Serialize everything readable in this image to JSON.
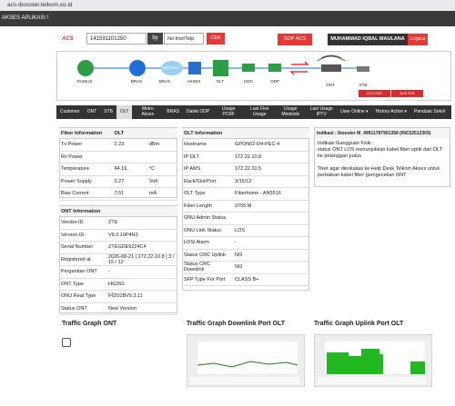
{
  "browser": {
    "url": "acs-ibooster.telkom.co.id"
  },
  "topbar": {
    "title": "AKSES APLIKASI !"
  },
  "search": {
    "logo": "ACS",
    "input": "141591101250",
    "by": "by",
    "select": "No Inet/Telp",
    "button": "CEK"
  },
  "header_buttons": {
    "sop": "SOP ACS",
    "user": "MUHAMMAD IQBAL MAULANA",
    "logout": "Logout"
  },
  "topology": {
    "nodes": [
      "RADIUS",
      "BRAS",
      "BRAS",
      "AKSES",
      "OLT",
      "ODC",
      "ODP",
      "ONT",
      "STB"
    ],
    "cloud": "METRO-E",
    "buttons": [
      "ACS ONT Connectivity",
      "ACS STB Connectivity"
    ]
  },
  "tabs": [
    "Customer",
    "ONT",
    "STB",
    "OLT",
    "Metro Akses",
    "BRAS",
    "Datek ODP",
    "Usage PCRF",
    "Last Five Usage",
    "Usage Minitools",
    "Last Usage IPTV",
    "User Online ▾",
    "History Action ▾",
    "Panduan Sokol"
  ],
  "fiber": {
    "title": "Fiber Information",
    "column": "OLT",
    "rows": [
      [
        "Tx Power",
        "2.23",
        "dBm"
      ],
      [
        "Rx Power"
      ],
      [
        "Temperature",
        "44.16",
        "°C"
      ],
      [
        "Power Supply",
        "3.27",
        "Volt"
      ],
      [
        "Bias Current",
        "7.51",
        "mA"
      ]
    ]
  },
  "ont": {
    "title": "ONT Information",
    "rows": [
      [
        "Vendor ID",
        "ZTE"
      ],
      [
        "Version ID",
        "V9.3.10P4N3"
      ],
      [
        "Serial Number",
        "ZTEGDE9224C4"
      ],
      [
        "Registered at",
        "2026-08-21 | 172.22.10.8 | 3 / 15 / 12"
      ],
      [
        "Pergantian ONT",
        "-"
      ],
      [
        "ONT Type",
        "HG260"
      ],
      [
        "ONU Real Type",
        "F6201BV9.3.11"
      ],
      [
        "Status ONT",
        "New Version"
      ]
    ]
  },
  "olt": {
    "title": "OLT Information",
    "rows": [
      [
        "Hostname",
        "GPON02-D4-PEC-4"
      ],
      [
        "IP OLT",
        "172.22.10.8"
      ],
      [
        "IP AMS",
        "172.22.10.5"
      ],
      [
        "Rack/Slot/Port",
        "3/15/12"
      ],
      [
        "OLT Type",
        "Fiberhome - AN5516"
      ],
      [
        "Fiber Length",
        "3755 M"
      ],
      [
        "ONU Admin Status"
      ],
      [
        "ONU Link Status",
        "LOS"
      ],
      [
        "LOSi Alarm",
        "-"
      ],
      [
        "Status CRC Uplink",
        "NO"
      ],
      [
        "Status CRC Downlink",
        "NO"
      ],
      [
        "SFP Type For Port",
        "CLASS B+"
      ]
    ]
  },
  "indikasi": {
    "title": "Indikasi : Ibooster M_49911787901358 (INC52512303)",
    "lines": [
      "Indikasi Gangguan Fisik :",
      "status ONT LOS menunjukkan kabel fiber optik dari OLT ke pelanggan putus",
      "Tiket agar dieskalasi ke Help Desk Telkom Akses untuk perbaikan kabel fiber (pengecekan ONT"
    ]
  },
  "traffic": [
    "Traffic Graph ONT",
    "Traffic Graph Downlink Port OLT",
    "Traffic Graph Uplink Port OLT"
  ]
}
